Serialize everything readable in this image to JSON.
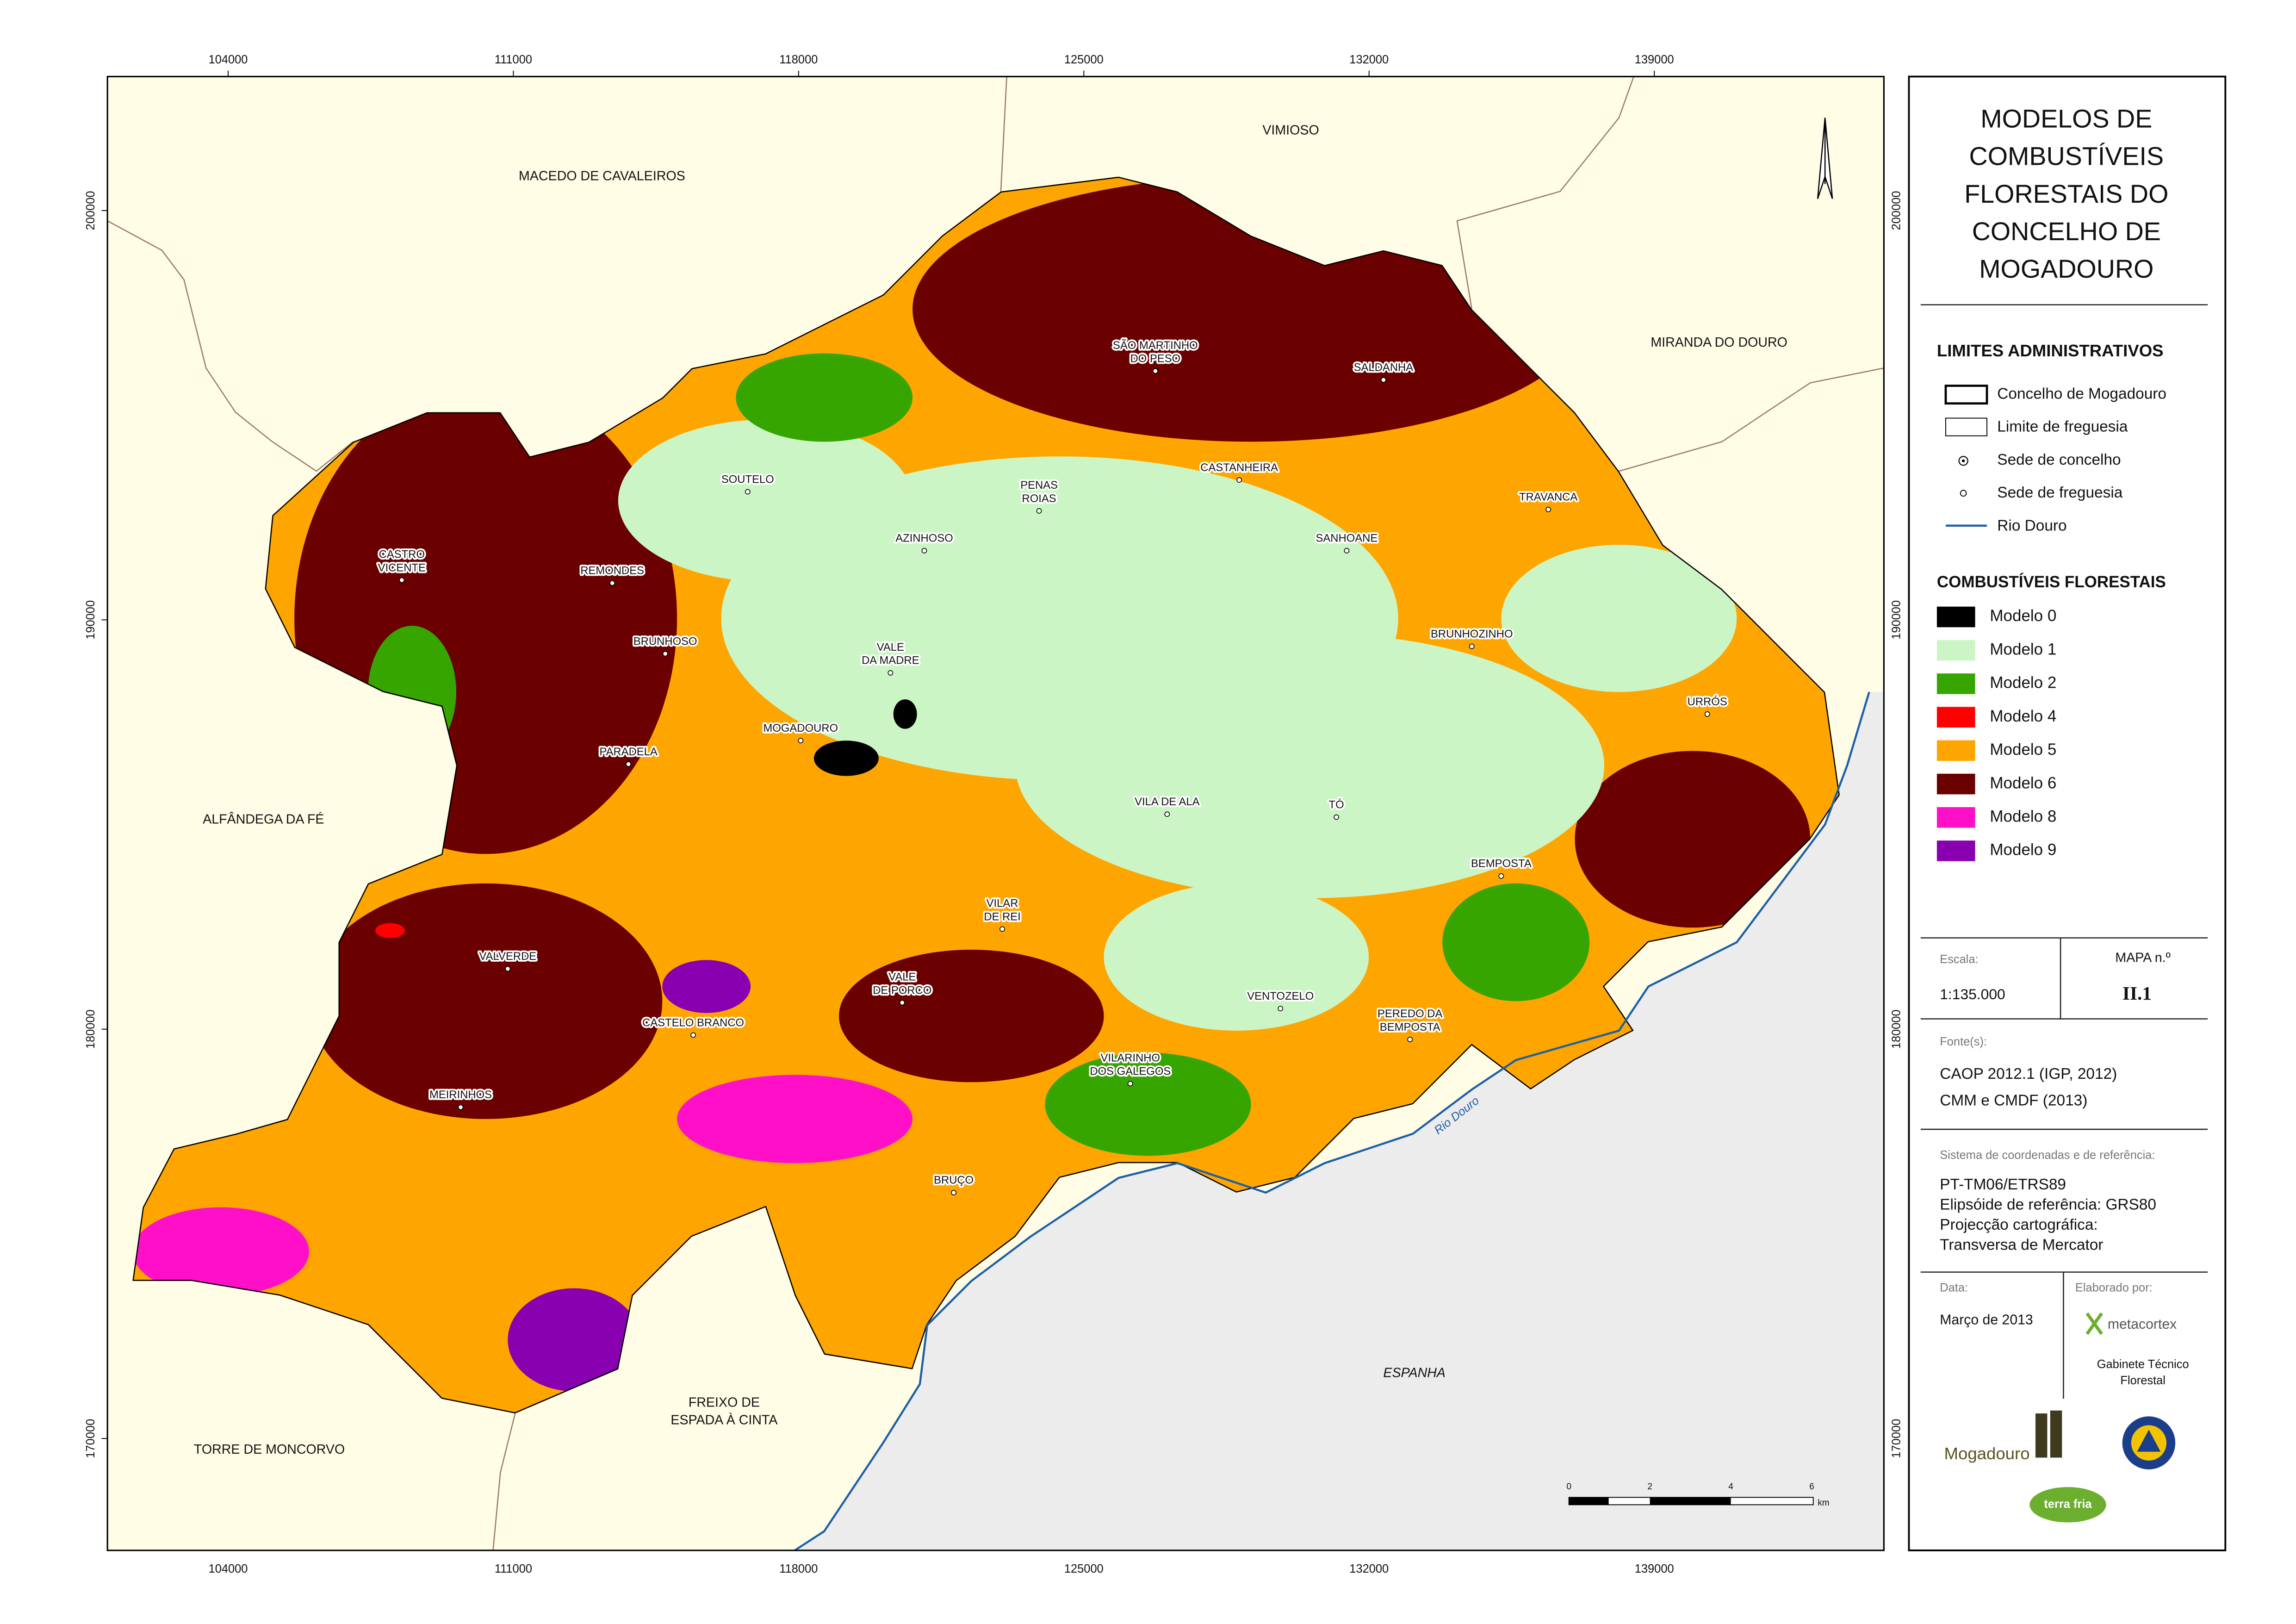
{
  "map": {
    "x_ticks": [
      104000,
      111000,
      118000,
      125000,
      132000,
      139000
    ],
    "y_ticks": [
      200000,
      190000,
      180000,
      170000
    ],
    "neighbors": [
      {
        "lines": [
          "MACEDO DE CAVALEIROS"
        ]
      },
      {
        "lines": [
          "VIMIOSO"
        ]
      },
      {
        "lines": [
          "MIRANDA DO DOURO"
        ]
      },
      {
        "lines": [
          "ALFÂNDEGA DA FÉ"
        ]
      },
      {
        "lines": [
          "TORRE DE MONCORVO"
        ]
      },
      {
        "lines": [
          "FREIXO DE",
          "ESPADA À CINTA"
        ]
      },
      {
        "lines": [
          "ESPANHA"
        ]
      }
    ],
    "parishes": [
      {
        "lines": [
          "SÃO MARTINHO",
          "DO PESO"
        ]
      },
      {
        "lines": [
          "SALDANHA"
        ]
      },
      {
        "lines": [
          "CASTANHEIRA"
        ]
      },
      {
        "lines": [
          "SOUTELO"
        ]
      },
      {
        "lines": [
          "PENAS",
          "ROIAS"
        ]
      },
      {
        "lines": [
          "TRAVANCA"
        ]
      },
      {
        "lines": [
          "AZINHOSO"
        ]
      },
      {
        "lines": [
          "SANHOANE"
        ]
      },
      {
        "lines": [
          "CASTRO",
          "VICENTE"
        ]
      },
      {
        "lines": [
          "REMONDES"
        ]
      },
      {
        "lines": [
          "BRUNHOSO"
        ]
      },
      {
        "lines": [
          "VALE",
          "DA MADRE"
        ]
      },
      {
        "lines": [
          "BRUNHOZINHO"
        ]
      },
      {
        "lines": [
          "URRÓS"
        ]
      },
      {
        "lines": [
          "MOGADOURO"
        ]
      },
      {
        "lines": [
          "PARADELA"
        ]
      },
      {
        "lines": [
          "VILA DE ALA"
        ]
      },
      {
        "lines": [
          "TÓ"
        ]
      },
      {
        "lines": [
          "BEMPOSTA"
        ]
      },
      {
        "lines": [
          "VILAR",
          "DE REI"
        ]
      },
      {
        "lines": [
          "VALVERDE"
        ]
      },
      {
        "lines": [
          "VALE",
          "DE PORCO"
        ]
      },
      {
        "lines": [
          "VENTOZELO"
        ]
      },
      {
        "lines": [
          "CASTELO BRANCO"
        ]
      },
      {
        "lines": [
          "PEREDO DA",
          "BEMPOSTA"
        ]
      },
      {
        "lines": [
          "VILARINHO",
          "DOS GALEGOS"
        ]
      },
      {
        "lines": [
          "MEIRINHOS"
        ]
      },
      {
        "lines": [
          "BRUÇO"
        ]
      }
    ],
    "river_label": "Rio Douro",
    "scale_bar": {
      "ticks": [
        0,
        2,
        4,
        6
      ],
      "unit": "km"
    }
  },
  "legend": {
    "title_lines": [
      "MODELOS DE",
      "COMBUSTÍVEIS",
      "FLORESTAIS DO",
      "CONCELHO DE",
      "MOGADOURO"
    ],
    "admin": {
      "heading": "LIMITES ADMINISTRATIVOS",
      "items": [
        "Concelho de Mogadouro",
        "Limite de freguesia",
        "Sede de concelho",
        "Sede de freguesia",
        "Rio Douro"
      ]
    },
    "fuel": {
      "heading": "COMBUSTÍVEIS FLORESTAIS",
      "items": [
        {
          "label": "Modelo 0",
          "color": "#000000"
        },
        {
          "label": "Modelo 1",
          "color": "#ccf5c6"
        },
        {
          "label": "Modelo 2",
          "color": "#36a500"
        },
        {
          "label": "Modelo 4",
          "color": "#ff0000"
        },
        {
          "label": "Modelo 5",
          "color": "#ffa500"
        },
        {
          "label": "Modelo 6",
          "color": "#6b0000"
        },
        {
          "label": "Modelo 8",
          "color": "#ff10c8"
        },
        {
          "label": "Modelo 9",
          "color": "#8800b0"
        }
      ]
    },
    "scale_label": "Escala:",
    "scale": "1:135.000",
    "map_number_label": "MAPA  n.º",
    "map_number": "II.1",
    "sources_label": "Fonte(s):",
    "sources": [
      "CAOP 2012.1 (IGP, 2012)",
      "CMM e CMDF (2013)"
    ],
    "crs_label": "Sistema de coordenadas e de referência:",
    "crs": [
      "PT-TM06/ETRS89",
      "Elipsóide de referência: GRS80",
      "Projecção cartográfica:",
      "Transversa de Mercator"
    ],
    "date_label": "Data:",
    "date": "Março de 2013",
    "author_label": "Elaborado por:",
    "author": "metacortex",
    "author_unit": [
      "Gabinete Técnico",
      "Florestal"
    ],
    "logos": [
      "Mogadouro",
      "terra fria"
    ]
  }
}
